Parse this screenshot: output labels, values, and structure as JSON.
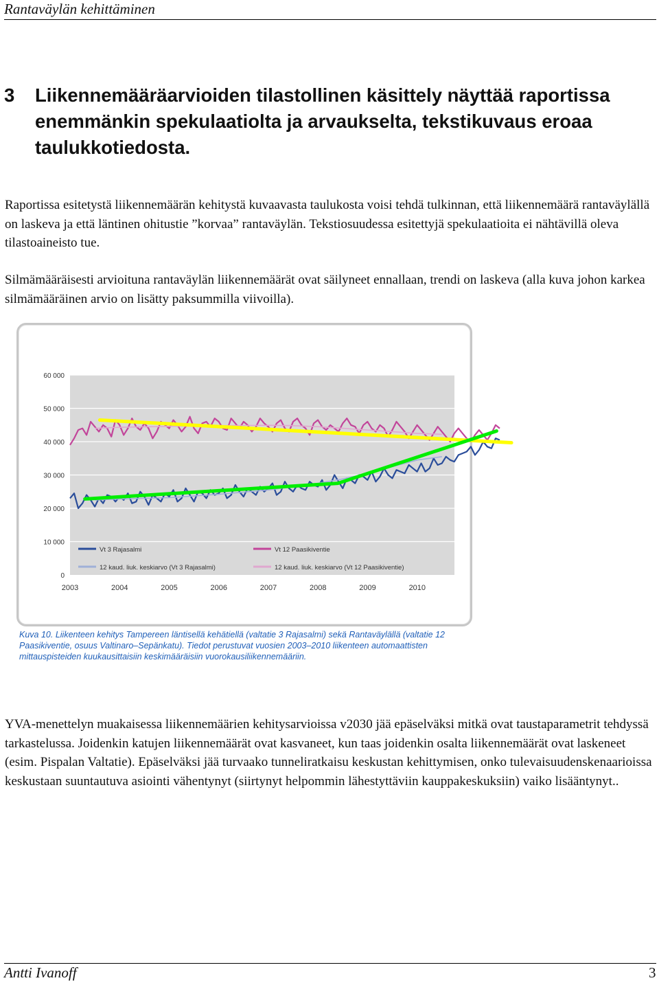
{
  "header": {
    "running_title": "Rantaväylän kehittäminen"
  },
  "section": {
    "number": "3",
    "title": "Liikennemääräarvioiden tilastollinen käsittely näyttää raportissa enemmänkin spekulaatiolta ja arvaukselta, tekstikuvaus eroaa taulukkotiedosta."
  },
  "paragraphs": [
    "Raportissa esitetystä liikennemäärän kehitystä kuvaavasta taulukosta voisi tehdä tulkinnan, että liikennemäärä rantaväylällä on laskeva ja että läntinen ohitustie ”korvaa” rantaväylän. Tekstiosuudessa esitettyjä spekulaatioita ei nähtävillä oleva tilastoaineisto tue.",
    "Silmämääräisesti arvioituna rantaväylän liikennemäärät ovat säilyneet ennallaan, trendi on laskeva (alla kuva johon karkea silmämääräinen arvio on lisätty paksummilla viivoilla).",
    "YVA-menettelyn muakaisessa liikennemäärien kehitysarvioissa v2030 jää epäselväksi mitkä ovat taustaparametrit tehdyssä tarkastelussa. Joidenkin katujen liikennemäärät ovat kasvaneet, kun taas joidenkin osalta liikennemäärät ovat laskeneet (esim. Pispalan Valtatie). Epäselväksi jää turvaako tunneliratkaisu keskustan kehittymisen, onko tulevaisuudenskenaarioissa keskustaan suuntautuva asiointi vähentynyt (siirtynyt helpommin lähestyttäviin kauppakeskuksiin) vaiko lisääntynyt.."
  ],
  "caption": "Kuva 10. Liikenteen kehitys Tampereen läntisellä kehätiellä (valtatie 3 Rajasalmi) sekä Rantaväylällä (valtatie 12 Paasikiventie, osuus Valtinaro–Sepänkatu). Tiedot perustuvat vuosien 2003–2010 liikenteen automaattisten mittauspisteiden kuukausittaisiin keskimääräisiin vuorokausiliikennemääriin.",
  "footer": {
    "author": "Antti Ivanoff",
    "page_number": "3"
  },
  "colors": {
    "vt3": "#2a4d9a",
    "vt3_avg": "#9fb0d8",
    "vt12": "#c2459a",
    "vt12_avg": "#e0a7cf",
    "trend_yellow": "#ffff00",
    "trend_green": "#00ee00",
    "plot_bg": "#d9d9d9",
    "caption": "#1f5fb8"
  },
  "chart_data": {
    "type": "line",
    "ylim": [
      0,
      60000
    ],
    "y_ticks": [
      "0",
      "10 000",
      "20 000",
      "30 000",
      "40 000",
      "50 000",
      "60 000"
    ],
    "x_ticks": [
      "2003",
      "2004",
      "2005",
      "2006",
      "2007",
      "2008",
      "2009",
      "2010"
    ],
    "xlim": [
      2003,
      2010.75
    ],
    "grid": "horizontal",
    "legend_position": "bottom",
    "series": [
      {
        "name": "Vt 3 Rajasalmi",
        "x_start": 2003.0,
        "x_step": 0.0833,
        "values": [
          23000,
          24500,
          20000,
          21500,
          24000,
          22500,
          20500,
          23000,
          21500,
          24000,
          23500,
          22000,
          23500,
          22500,
          24500,
          21500,
          22000,
          25000,
          23500,
          21000,
          24000,
          23000,
          22000,
          24500,
          23500,
          25500,
          22000,
          23000,
          26000,
          24000,
          22000,
          25000,
          24500,
          23000,
          25500,
          24000,
          24500,
          26000,
          23000,
          24000,
          27000,
          25000,
          23500,
          26000,
          25000,
          24000,
          26500,
          25000,
          26000,
          27500,
          24000,
          25000,
          28000,
          26000,
          25000,
          27000,
          26000,
          25500,
          28000,
          27000,
          26500,
          28500,
          25500,
          27000,
          30000,
          28000,
          26000,
          29000,
          28500,
          27500,
          30000,
          29500,
          28500,
          31000,
          28000,
          29500,
          32000,
          30000,
          29000,
          31500,
          31000,
          30500,
          33000,
          32000,
          31000,
          33500,
          31000,
          32000,
          35000,
          33000,
          33500,
          35500,
          34500,
          34000,
          36000,
          36500,
          37000,
          38500,
          36000,
          37500,
          40000,
          38500,
          38000,
          41000,
          40500
        ]
      },
      {
        "name": "Vt 12 Paasikiventie",
        "x_start": 2003.0,
        "x_step": 0.0833,
        "values": [
          39000,
          41000,
          43500,
          44000,
          42000,
          46000,
          44500,
          43000,
          45000,
          44000,
          41500,
          46500,
          45000,
          42000,
          44000,
          47000,
          44500,
          43500,
          45500,
          44000,
          41000,
          43000,
          46000,
          45000,
          44000,
          46500,
          45000,
          43000,
          44500,
          47500,
          44000,
          42500,
          45500,
          46000,
          44500,
          47000,
          46000,
          44000,
          43500,
          47000,
          45500,
          44000,
          46000,
          45000,
          43000,
          44500,
          47000,
          45500,
          44500,
          43000,
          45500,
          46500,
          44000,
          43000,
          46000,
          47000,
          45000,
          44000,
          42000,
          45500,
          46500,
          44500,
          43500,
          45000,
          44000,
          43000,
          45500,
          47000,
          45000,
          44500,
          42500,
          45000,
          46000,
          44000,
          43000,
          45000,
          44000,
          41500,
          43500,
          46000,
          44500,
          43000,
          41000,
          43000,
          45000,
          43500,
          42000,
          40500,
          42500,
          44500,
          43000,
          41500,
          40000,
          42500,
          44000,
          42500,
          41000,
          40000,
          42000,
          43500,
          42000,
          40500,
          42500,
          45000,
          44000
        ]
      },
      {
        "name": "12 kaud. liuk. keskiarvo (Vt 3 Rajasalmi)",
        "points": [
          [
            2003.5,
            22500
          ],
          [
            2004.0,
            22800
          ],
          [
            2005.0,
            23200
          ],
          [
            2006.0,
            24200
          ],
          [
            2007.0,
            25500
          ],
          [
            2007.5,
            26500
          ],
          [
            2008.0,
            27500
          ],
          [
            2008.5,
            28800
          ],
          [
            2009.0,
            30500
          ],
          [
            2009.5,
            32500
          ],
          [
            2010.0,
            34500
          ],
          [
            2010.5,
            35500
          ]
        ]
      },
      {
        "name": "12 kaud. liuk. keskiarvo (Vt 12 Paasikiventie)",
        "points": [
          [
            2003.5,
            44000
          ],
          [
            2004.0,
            44300
          ],
          [
            2005.0,
            44600
          ],
          [
            2006.0,
            44800
          ],
          [
            2007.0,
            44900
          ],
          [
            2007.5,
            44800
          ],
          [
            2008.0,
            44500
          ],
          [
            2008.5,
            44000
          ],
          [
            2009.0,
            43500
          ],
          [
            2009.5,
            43000
          ],
          [
            2010.0,
            42500
          ],
          [
            2010.5,
            42200
          ]
        ]
      }
    ],
    "trend_lines": [
      {
        "label": "yellow",
        "points": [
          [
            2003.6,
            46500
          ],
          [
            2011.9,
            39700
          ]
        ]
      },
      {
        "label": "green",
        "points": [
          [
            2003.3,
            22800
          ],
          [
            2008.4,
            27500
          ],
          [
            2011.6,
            43200
          ]
        ]
      }
    ]
  }
}
